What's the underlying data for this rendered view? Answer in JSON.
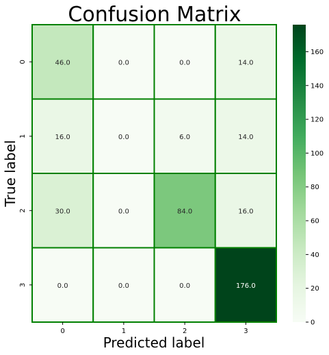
{
  "chart_data": {
    "type": "heatmap",
    "title": "Confusion Matrix",
    "xlabel": "Predicted label",
    "ylabel": "True label",
    "x_categories": [
      "0",
      "1",
      "2",
      "3"
    ],
    "y_categories": [
      "0",
      "1",
      "2",
      "3"
    ],
    "values": [
      [
        46.0,
        0.0,
        0.0,
        14.0
      ],
      [
        16.0,
        0.0,
        6.0,
        14.0
      ],
      [
        30.0,
        0.0,
        84.0,
        16.0
      ],
      [
        0.0,
        0.0,
        0.0,
        176.0
      ]
    ],
    "cell_labels": [
      [
        "46.0",
        "0.0",
        "0.0",
        "14.0"
      ],
      [
        "16.0",
        "0.0",
        "6.0",
        "14.0"
      ],
      [
        "30.0",
        "0.0",
        "84.0",
        "16.0"
      ],
      [
        "0.0",
        "0.0",
        "0.0",
        "176.0"
      ]
    ],
    "colorscale": "Greens",
    "color_range": [
      0,
      176
    ],
    "colorbar_ticks": [
      "0",
      "20",
      "40",
      "60",
      "80",
      "100",
      "120",
      "140",
      "160"
    ],
    "cell_border_color": "#008000",
    "grid": false,
    "legend": "colorbar-right"
  }
}
